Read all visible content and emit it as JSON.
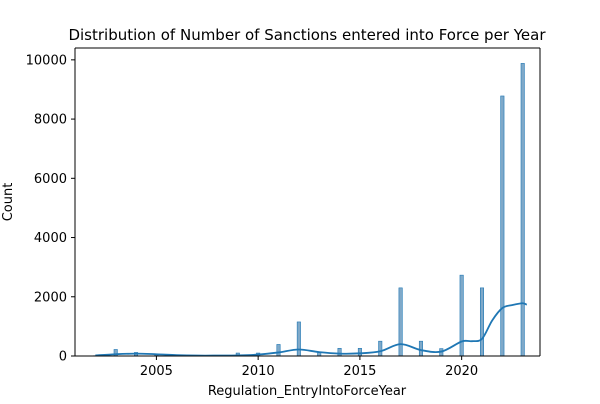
{
  "chart_data": {
    "type": "bar",
    "title": "Distribution of Number of Sanctions entered into Force per Year",
    "xlabel": "Regulation_EntryIntoForceYear",
    "ylabel": "Count",
    "xlim": [
      2001.0,
      2023.85
    ],
    "ylim": [
      0,
      10400
    ],
    "xticks": [
      2005,
      2010,
      2015,
      2020
    ],
    "yticks": [
      0,
      2000,
      4000,
      6000,
      8000,
      10000
    ],
    "grid": false,
    "legend": "none",
    "bar_color": "#7fa9c9",
    "bar_edge_color": "#1f77b4",
    "kde_color": "#1f77b4",
    "bars": [
      {
        "year": 2002,
        "count": 10
      },
      {
        "year": 2003,
        "count": 220
      },
      {
        "year": 2004,
        "count": 120
      },
      {
        "year": 2005,
        "count": 40
      },
      {
        "year": 2006,
        "count": 30
      },
      {
        "year": 2007,
        "count": 10
      },
      {
        "year": 2008,
        "count": 10
      },
      {
        "year": 2009,
        "count": 100
      },
      {
        "year": 2010,
        "count": 100
      },
      {
        "year": 2011,
        "count": 390
      },
      {
        "year": 2012,
        "count": 1150
      },
      {
        "year": 2013,
        "count": 120
      },
      {
        "year": 2014,
        "count": 260
      },
      {
        "year": 2015,
        "count": 260
      },
      {
        "year": 2016,
        "count": 500
      },
      {
        "year": 2017,
        "count": 2300
      },
      {
        "year": 2018,
        "count": 500
      },
      {
        "year": 2019,
        "count": 250
      },
      {
        "year": 2020,
        "count": 2730
      },
      {
        "year": 2021,
        "count": 2300
      },
      {
        "year": 2022,
        "count": 8780
      },
      {
        "year": 2023,
        "count": 9880
      }
    ],
    "kde": [
      [
        2002,
        20
      ],
      [
        2003,
        60
      ],
      [
        2004,
        80
      ],
      [
        2005,
        60
      ],
      [
        2006,
        30
      ],
      [
        2007,
        15
      ],
      [
        2008,
        15
      ],
      [
        2009,
        20
      ],
      [
        2010,
        50
      ],
      [
        2011,
        120
      ],
      [
        2012,
        220
      ],
      [
        2013,
        130
      ],
      [
        2014,
        80
      ],
      [
        2015,
        90
      ],
      [
        2016,
        160
      ],
      [
        2017,
        400
      ],
      [
        2018,
        200
      ],
      [
        2019,
        150
      ],
      [
        2020,
        490
      ],
      [
        2020.5,
        500
      ],
      [
        2021,
        580
      ],
      [
        2021.5,
        1200
      ],
      [
        2022,
        1620
      ],
      [
        2022.5,
        1720
      ],
      [
        2023,
        1780
      ],
      [
        2023.2,
        1730
      ]
    ]
  }
}
